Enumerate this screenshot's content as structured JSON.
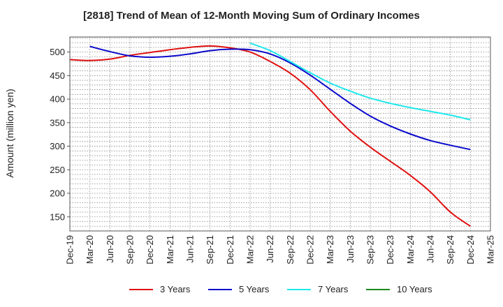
{
  "chart_data": {
    "type": "line",
    "title": "[2818]  Trend of Mean of 12-Month Moving Sum of Ordinary Incomes",
    "ylabel": "Amount (million yen)",
    "xlabel": "",
    "ylim": [
      120,
      532
    ],
    "yticks": [
      150,
      200,
      250,
      300,
      350,
      400,
      450,
      500
    ],
    "grid": true,
    "legend_position": "bottom",
    "categories": [
      "Dec-19",
      "Mar-20",
      "Jun-20",
      "Sep-20",
      "Dec-20",
      "Mar-21",
      "Jun-21",
      "Sep-21",
      "Dec-21",
      "Mar-22",
      "Jun-22",
      "Sep-22",
      "Dec-22",
      "Mar-23",
      "Jun-23",
      "Sep-23",
      "Dec-23",
      "Mar-24",
      "Jun-24",
      "Sep-24",
      "Dec-24",
      "Mar-25"
    ],
    "series": [
      {
        "name": "3 Years",
        "color": "#e01010",
        "values": [
          484,
          482,
          485,
          493,
          499,
          505,
          510,
          513,
          509,
          500,
          480,
          455,
          420,
          374,
          332,
          298,
          268,
          238,
          203,
          160,
          130,
          null
        ]
      },
      {
        "name": "5 Years",
        "color": "#0a0acc",
        "values": [
          null,
          512,
          501,
          492,
          489,
          491,
          496,
          503,
          506,
          505,
          496,
          477,
          451,
          421,
          391,
          364,
          343,
          326,
          312,
          302,
          293,
          null
        ]
      },
      {
        "name": "7 Years",
        "color": "#1ee8ec",
        "values": [
          null,
          null,
          null,
          null,
          null,
          null,
          null,
          null,
          null,
          519,
          503,
          480,
          456,
          434,
          417,
          402,
          391,
          382,
          374,
          366,
          356,
          null
        ]
      },
      {
        "name": "10 Years",
        "color": "#1a8a1a",
        "values": [
          null,
          null,
          null,
          null,
          null,
          null,
          null,
          null,
          null,
          null,
          null,
          null,
          null,
          null,
          null,
          null,
          null,
          null,
          null,
          null,
          null,
          null
        ]
      }
    ]
  }
}
